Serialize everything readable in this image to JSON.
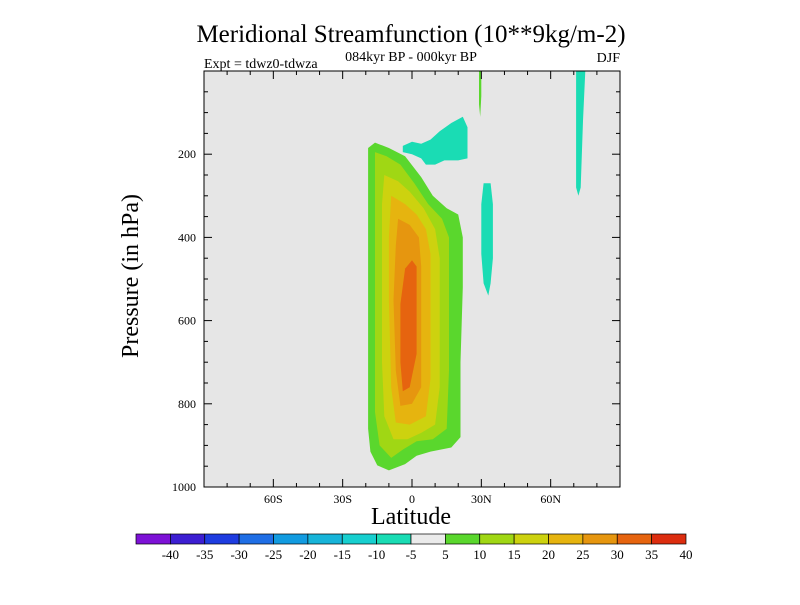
{
  "chart_data": {
    "type": "contour",
    "title": "Meridional Streamfunction (10**9kg/m-2)",
    "subtitle": "084kyr BP - 000kyr BP",
    "left_label": "Expt = tdwz0-tdwza",
    "right_label": "DJF",
    "xlabel": "Latitude",
    "ylabel": "Pressure (in hPa)",
    "xlim": [
      -90,
      90
    ],
    "ylim": [
      1000,
      0
    ],
    "x_ticks": [
      {
        "value": -60,
        "label": "60S"
      },
      {
        "value": -30,
        "label": "30S"
      },
      {
        "value": 0,
        "label": "0"
      },
      {
        "value": 30,
        "label": "30N"
      },
      {
        "value": 60,
        "label": "60N"
      }
    ],
    "y_ticks": [
      {
        "value": 200,
        "label": "200"
      },
      {
        "value": 400,
        "label": "400"
      },
      {
        "value": 600,
        "label": "600"
      },
      {
        "value": 800,
        "label": "800"
      },
      {
        "value": 1000,
        "label": "1000"
      }
    ],
    "background_color": "#e6e6e6",
    "levels": [
      -40,
      -35,
      -30,
      -25,
      -20,
      -15,
      -10,
      -5,
      5,
      10,
      15,
      20,
      25,
      30,
      35,
      40
    ],
    "level_labels": [
      "-40",
      "-35",
      "-30",
      "-25",
      "-20",
      "-15",
      "-10",
      "-5",
      "5",
      "10",
      "15",
      "20",
      "25",
      "30",
      "35",
      "40"
    ],
    "colors": [
      "#7d12d6",
      "#3c1ed2",
      "#1e3ce0",
      "#1f6ee5",
      "#129be0",
      "#17b4d9",
      "#17cfcf",
      "#1adcb4",
      "#ebebeb",
      "#5ad72d",
      "#a0d714",
      "#cdd20f",
      "#e6b40f",
      "#e6960f",
      "#e6640f",
      "#dc2d0f"
    ],
    "contour_regions": [
      {
        "level": "5",
        "color": "#5ad72d",
        "points": [
          [
            -19,
            185
          ],
          [
            -16,
            172
          ],
          [
            -10,
            185
          ],
          [
            -3,
            205
          ],
          [
            4,
            255
          ],
          [
            9,
            300
          ],
          [
            15,
            330
          ],
          [
            20,
            345
          ],
          [
            22,
            400
          ],
          [
            22,
            520
          ],
          [
            21,
            700
          ],
          [
            21,
            880
          ],
          [
            17,
            905
          ],
          [
            8,
            915
          ],
          [
            2,
            925
          ],
          [
            -3,
            945
          ],
          [
            -10,
            960
          ],
          [
            -15,
            948
          ],
          [
            -18,
            915
          ],
          [
            -19,
            860
          ],
          [
            -19,
            600
          ],
          [
            -19,
            300
          ]
        ]
      },
      {
        "level": "10",
        "color": "#a0d714",
        "points": [
          [
            -16,
            195
          ],
          [
            -11,
            205
          ],
          [
            -5,
            225
          ],
          [
            1,
            270
          ],
          [
            7,
            320
          ],
          [
            13,
            355
          ],
          [
            16,
            400
          ],
          [
            16,
            550
          ],
          [
            16,
            720
          ],
          [
            15,
            860
          ],
          [
            9,
            885
          ],
          [
            2,
            890
          ],
          [
            -4,
            910
          ],
          [
            -9,
            930
          ],
          [
            -14,
            900
          ],
          [
            -16,
            820
          ],
          [
            -16,
            500
          ],
          [
            -16,
            280
          ]
        ]
      },
      {
        "level": "15",
        "color": "#cdd20f",
        "points": [
          [
            -12,
            250
          ],
          [
            -6,
            265
          ],
          [
            -1,
            290
          ],
          [
            5,
            330
          ],
          [
            10,
            380
          ],
          [
            12,
            450
          ],
          [
            12,
            600
          ],
          [
            12,
            760
          ],
          [
            10,
            850
          ],
          [
            4,
            870
          ],
          [
            -2,
            885
          ],
          [
            -8,
            885
          ],
          [
            -12,
            830
          ],
          [
            -13,
            700
          ],
          [
            -13,
            450
          ],
          [
            -13,
            320
          ]
        ]
      },
      {
        "level": "20",
        "color": "#e6b40f",
        "points": [
          [
            -9,
            300
          ],
          [
            -3,
            320
          ],
          [
            2,
            345
          ],
          [
            6,
            380
          ],
          [
            8,
            440
          ],
          [
            8,
            600
          ],
          [
            8,
            740
          ],
          [
            6,
            830
          ],
          [
            -1,
            850
          ],
          [
            -7,
            845
          ],
          [
            -9,
            760
          ],
          [
            -10,
            550
          ],
          [
            -10,
            400
          ]
        ]
      },
      {
        "level": "25",
        "color": "#e6960f",
        "points": [
          [
            -6,
            355
          ],
          [
            -1,
            370
          ],
          [
            3,
            400
          ],
          [
            4,
            470
          ],
          [
            4,
            640
          ],
          [
            4,
            760
          ],
          [
            0,
            800
          ],
          [
            -5,
            805
          ],
          [
            -7,
            720
          ],
          [
            -8,
            550
          ],
          [
            -7,
            420
          ]
        ]
      },
      {
        "level": "30",
        "color": "#e6640f",
        "points": [
          [
            -3,
            475
          ],
          [
            0,
            455
          ],
          [
            2,
            470
          ],
          [
            2,
            560
          ],
          [
            2,
            680
          ],
          [
            -1,
            760
          ],
          [
            -4,
            770
          ],
          [
            -5,
            700
          ],
          [
            -5,
            560
          ]
        ]
      },
      {
        "level": "-5",
        "color": "#1adcb4",
        "points": [
          [
            -4,
            195
          ],
          [
            -4,
            180
          ],
          [
            0,
            170
          ],
          [
            4,
            175
          ],
          [
            8,
            165
          ],
          [
            12,
            145
          ],
          [
            17,
            125
          ],
          [
            22,
            110
          ],
          [
            24,
            135
          ],
          [
            24,
            210
          ],
          [
            20,
            215
          ],
          [
            14,
            215
          ],
          [
            10,
            225
          ],
          [
            6,
            225
          ],
          [
            4,
            210
          ],
          [
            0,
            200
          ]
        ]
      },
      {
        "level": "-5",
        "color": "#1adcb4",
        "points": [
          [
            31,
            270
          ],
          [
            34,
            270
          ],
          [
            35,
            320
          ],
          [
            35,
            450
          ],
          [
            34,
            510
          ],
          [
            33,
            540
          ],
          [
            31,
            510
          ],
          [
            30,
            440
          ],
          [
            30,
            320
          ]
        ]
      },
      {
        "level": "-5",
        "color": "#1adcb4",
        "points": [
          [
            71,
            0
          ],
          [
            75,
            0
          ],
          [
            74,
            120
          ],
          [
            73,
            280
          ],
          [
            72,
            300
          ],
          [
            71,
            280
          ],
          [
            71,
            200
          ],
          [
            71,
            60
          ]
        ]
      },
      {
        "level": "5",
        "color": "#5ad72d",
        "points": [
          [
            29,
            0
          ],
          [
            30,
            0
          ],
          [
            30,
            60
          ],
          [
            29.5,
            110
          ],
          [
            29,
            80
          ]
        ]
      }
    ]
  }
}
